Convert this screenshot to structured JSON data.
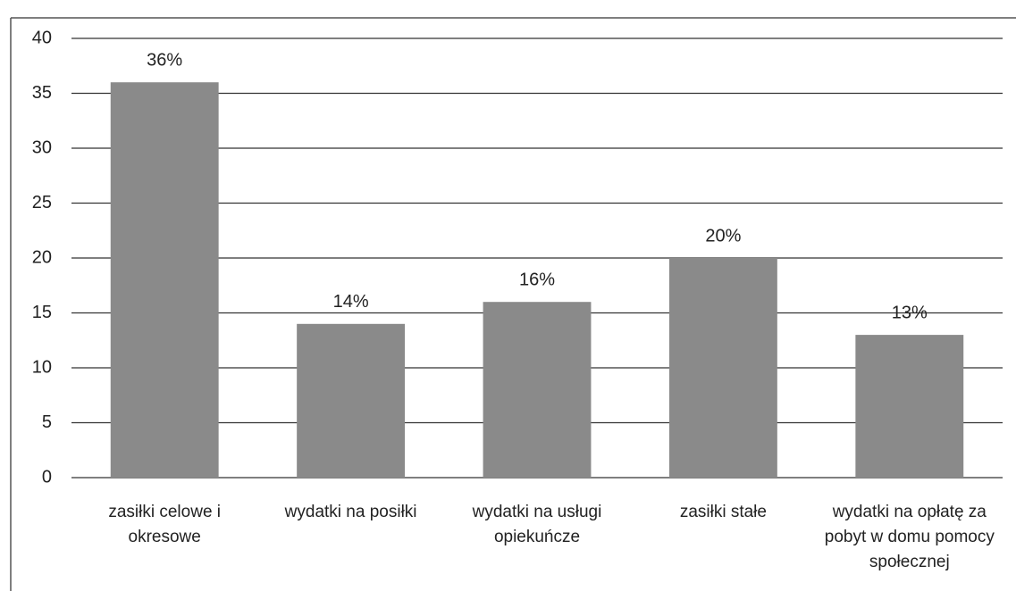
{
  "chart_data": {
    "type": "bar",
    "categories": [
      "zasiłki celowe i okresowe",
      "wydatki na posiłki",
      "wydatki na usługi opiekuńcze",
      "zasiłki stałe",
      "wydatki na opłatę za pobyt w domu pomocy społecznej"
    ],
    "values": [
      36,
      14,
      16,
      20,
      13
    ],
    "value_labels": [
      "36%",
      "14%",
      "16%",
      "20%",
      "13%"
    ],
    "color": "#8a8a8a",
    "ylim": [
      0,
      40
    ],
    "yticks": [
      0,
      5,
      10,
      15,
      20,
      25,
      30,
      35,
      40
    ],
    "grid": true
  }
}
